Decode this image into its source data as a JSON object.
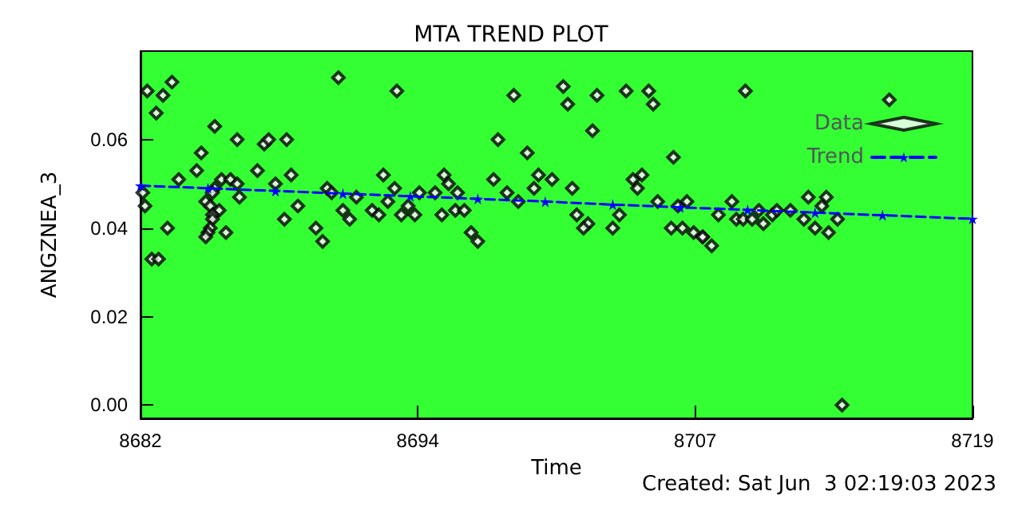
{
  "chart_data": {
    "type": "scatter",
    "title": "MTA TREND PLOT",
    "xlabel": "Time",
    "ylabel": "ANGZNEA_3",
    "annotations": [
      "Created: Sat Jun  3 02:19:03 2023"
    ],
    "xlim": [
      8682,
      8719
    ],
    "xticks": [
      8682,
      {
        "value": 8694.33,
        "label": "8694"
      },
      {
        "value": 8706.67,
        "label": "8707"
      },
      8719
    ],
    "ylim": [
      -0.003,
      0.08
    ],
    "yticks": [
      {
        "value": 0,
        "label": "0.00"
      },
      {
        "value": 0.02,
        "label": "0.02"
      },
      {
        "value": 0.04,
        "label": "0.04"
      },
      {
        "value": 0.06,
        "label": "0.06"
      }
    ],
    "grid": false,
    "legend": "top right",
    "series": [
      {
        "name": "Data",
        "marker": "diamond",
        "color": "#000000",
        "x": [
          8682.3,
          8683.4,
          8683.0,
          8682.7,
          8690.8,
          8693.4,
          8685.3,
          8686.3,
          8687.5,
          8687.7,
          8688.5,
          8684.7,
          8684.5,
          8687.2,
          8688.7,
          8683.7,
          8685.6,
          8686.0,
          8686.3,
          8688.0,
          8692.8,
          8690.3,
          8693.3,
          8685.3,
          8685.2,
          8682.1,
          8682.2,
          8686.4,
          8684.9,
          8685.1,
          8685.5,
          8689.0,
          8690.5,
          8691.6,
          8693.0,
          8694.4,
          8685.2,
          8685.2,
          8691.0,
          8691.3,
          8692.3,
          8692.6,
          8693.9,
          8693.6,
          8694.2,
          8688.4,
          8683.2,
          8685.1,
          8685.0,
          8685.8,
          8689.8,
          8690.1,
          8684.9,
          8682.5,
          8682.8,
          8698.6,
          8700.8,
          8701.0,
          8702.3,
          8703.6,
          8704.6,
          8704.8,
          8697.9,
          8702.1,
          8699.2,
          8705.7,
          8695.5,
          8695.1,
          8695.7,
          8696.1,
          8697.7,
          8699.7,
          8699.5,
          8700.3,
          8701.2,
          8698.3,
          8698.8,
          8695.4,
          8696.0,
          8696.4,
          8701.4,
          8703.3,
          8703.9,
          8704.3,
          8704.1,
          8701.9,
          8701.7,
          8703.0,
          8705.0,
          8705.9,
          8706.3,
          8705.6,
          8706.1,
          8706.6,
          8707.0,
          8696.7,
          8697.0,
          8708.9,
          8715.3,
          8708.3,
          8707.7,
          8708.5,
          8708.8,
          8709.2,
          8709.5,
          8709.7,
          8710.1,
          8710.3,
          8710.9,
          8711.5,
          8711.7,
          8712.5,
          8712.3,
          8712.0,
          8712.6,
          8713.0,
          8707.0,
          8707.4,
          8713.2
        ],
        "values": [
          0.071,
          0.073,
          0.07,
          0.066,
          0.074,
          0.071,
          0.063,
          0.06,
          0.059,
          0.06,
          0.06,
          0.057,
          0.053,
          0.053,
          0.052,
          0.051,
          0.051,
          0.051,
          0.05,
          0.05,
          0.052,
          0.049,
          0.049,
          0.049,
          0.048,
          0.048,
          0.045,
          0.047,
          0.046,
          0.045,
          0.044,
          0.045,
          0.048,
          0.047,
          0.046,
          0.048,
          0.043,
          0.042,
          0.044,
          0.042,
          0.044,
          0.043,
          0.045,
          0.043,
          0.043,
          0.042,
          0.04,
          0.04,
          0.039,
          0.039,
          0.04,
          0.037,
          0.038,
          0.033,
          0.033,
          0.07,
          0.072,
          0.068,
          0.07,
          0.071,
          0.071,
          0.068,
          0.06,
          0.062,
          0.057,
          0.056,
          0.052,
          0.048,
          0.05,
          0.048,
          0.051,
          0.052,
          0.049,
          0.051,
          0.049,
          0.048,
          0.046,
          0.043,
          0.044,
          0.044,
          0.043,
          0.043,
          0.051,
          0.052,
          0.049,
          0.041,
          0.04,
          0.04,
          0.046,
          0.045,
          0.046,
          0.04,
          0.04,
          0.039,
          0.038,
          0.039,
          0.037,
          0.071,
          0.069,
          0.046,
          0.043,
          0.042,
          0.042,
          0.042,
          0.044,
          0.041,
          0.043,
          0.044,
          0.044,
          0.042,
          0.047,
          0.047,
          0.045,
          0.04,
          0.039,
          0.042,
          0.038,
          0.036,
          0.0
        ]
      },
      {
        "name": "Trend",
        "type": "line",
        "marker": "star",
        "line_style": "dashed",
        "color": "#0000ff",
        "x": [
          8682,
          8685,
          8688,
          8691,
          8694,
          8697,
          8700,
          8703,
          8706,
          8709,
          8712,
          8715,
          8719
        ],
        "values": [
          0.0496,
          0.049,
          0.0484,
          0.0478,
          0.0472,
          0.0466,
          0.046,
          0.0453,
          0.0447,
          0.0441,
          0.0435,
          0.0429,
          0.0421
        ]
      }
    ]
  }
}
